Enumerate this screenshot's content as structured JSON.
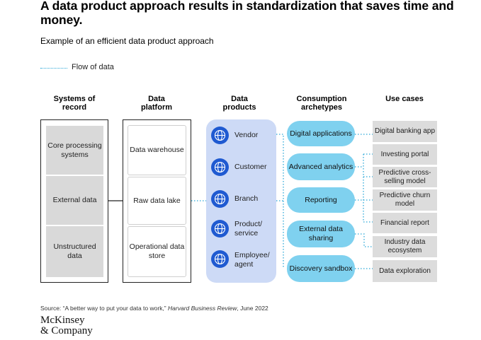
{
  "title": "A data product approach results in standardization that saves time and money.",
  "subtitle": "Example of an efficient data product approach",
  "legend": {
    "label": "Flow of data"
  },
  "columns": {
    "systems": "Systems of record",
    "platform": "Data platform",
    "products": "Data products",
    "archetypes": "Consumption archetypes",
    "usecases": "Use cases"
  },
  "systems": [
    "Core processing systems",
    "External data",
    "Unstructured data"
  ],
  "platform": [
    "Data warehouse",
    "Raw data lake",
    "Operational data store"
  ],
  "products": [
    "Vendor",
    "Customer",
    "Branch",
    "Product/ service",
    "Employee/ agent"
  ],
  "archetypes": [
    "Digital applications",
    "Advanced analytics",
    "Reporting",
    "External data sharing",
    "Discovery sandbox"
  ],
  "usecases": [
    "Digital banking app",
    "Investing portal",
    "Predictive cross-selling model",
    "Predictive churn model",
    "Financial report",
    "Industry data ecosystem",
    "Data exploration"
  ],
  "source": {
    "prefix": "Source: “A better way to put your data to work,” ",
    "publication": "Harvard Business Review",
    "suffix": ", June 2022"
  },
  "logo": {
    "line1": "McKinsey",
    "line2": "& Company"
  },
  "colors": {
    "accent_light": "#7fd1ef",
    "product_bg": "#cddaf6",
    "product_icon": "#1f5ad1",
    "gray": "#d9d9d9",
    "flow": "#2aa7d8"
  },
  "icons": {
    "product": "globe-icon"
  }
}
